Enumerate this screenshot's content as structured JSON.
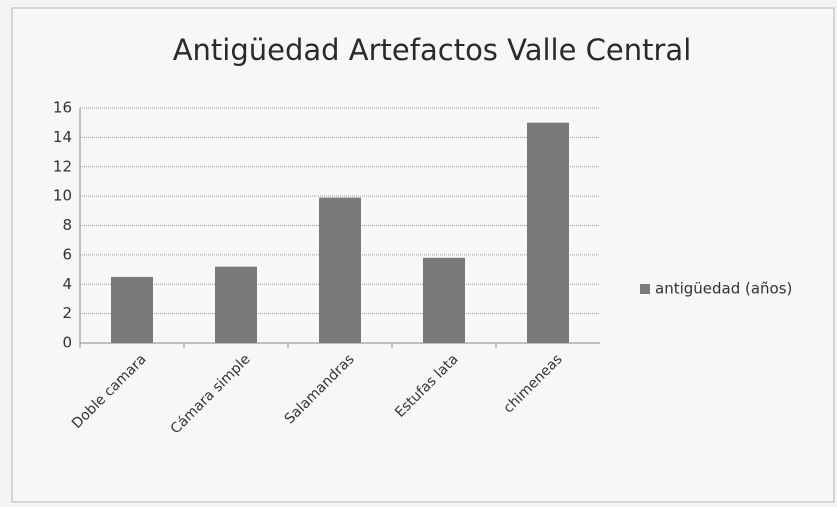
{
  "chart_data": {
    "type": "bar",
    "title": "Antigüedad Artefactos Valle Central",
    "categories": [
      "Doble camara",
      "Cámara simple",
      "Salamandras",
      "Estufas lata",
      "chimeneas"
    ],
    "series": [
      {
        "name": "antigüedad (años)",
        "color": "#7a7a7a",
        "values": [
          4.5,
          5.2,
          9.9,
          5.8,
          15
        ]
      }
    ],
    "ylim": [
      0,
      16
    ],
    "yticks": [
      0,
      2,
      4,
      6,
      8,
      10,
      12,
      14,
      16
    ],
    "grid": true,
    "legend": "right"
  }
}
